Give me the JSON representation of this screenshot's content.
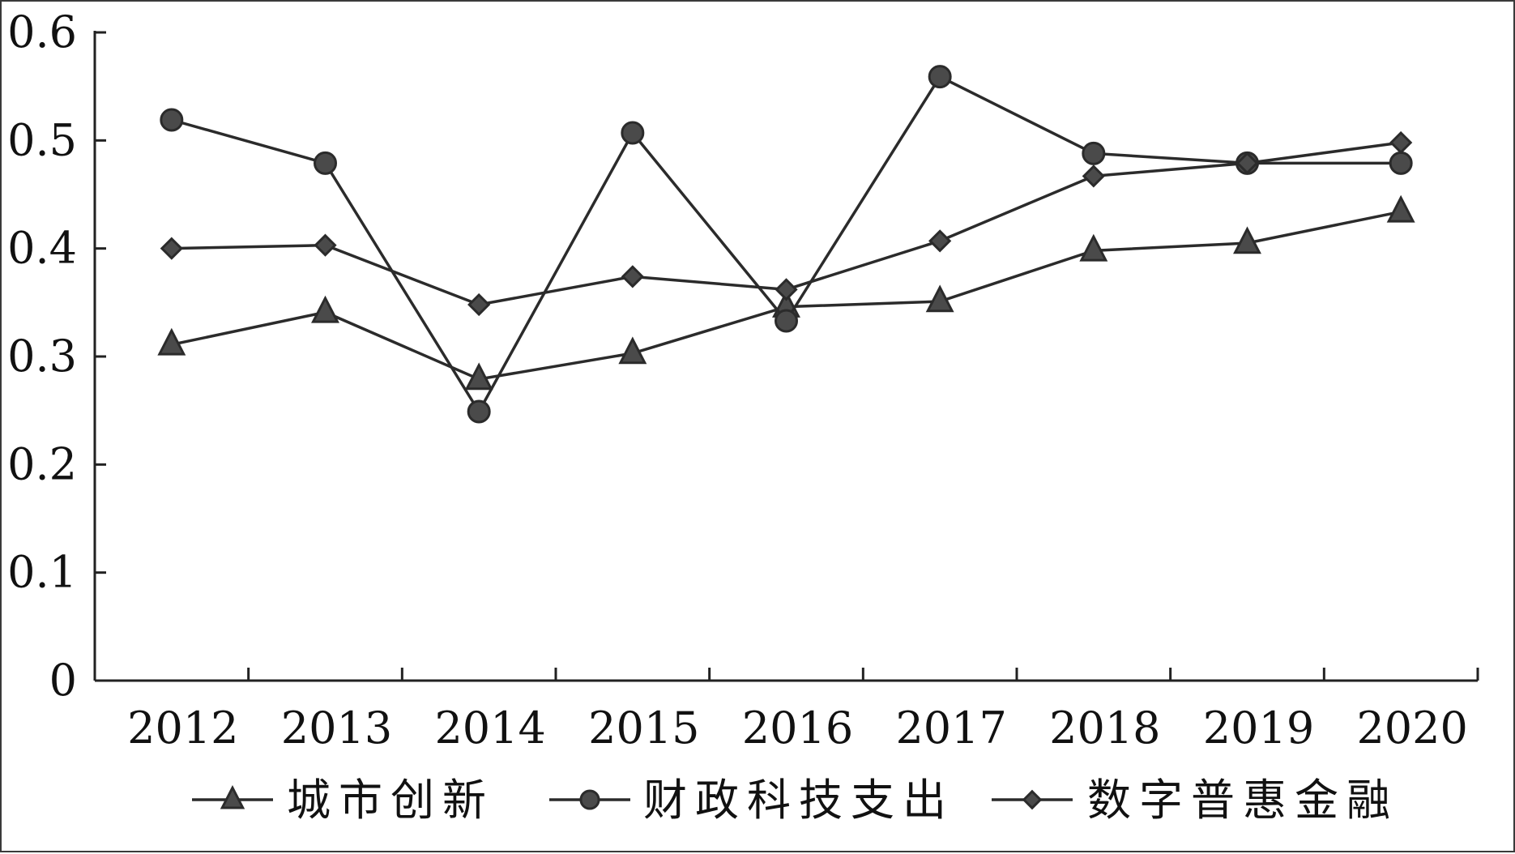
{
  "chart_data": {
    "type": "line",
    "categories": [
      "2012",
      "2013",
      "2014",
      "2015",
      "2016",
      "2017",
      "2018",
      "2019",
      "2020"
    ],
    "ylim": [
      0,
      0.6
    ],
    "yticks": [
      0,
      0.1,
      0.2,
      0.3,
      0.4,
      0.5,
      0.6
    ],
    "ytick_labels": [
      "0",
      "0.1",
      "0.2",
      "0.3",
      "0.4",
      "0.5",
      "0.6"
    ],
    "grid": false,
    "legend_position": "bottom",
    "series": [
      {
        "name": "城市创新",
        "marker": "triangle",
        "values": [
          0.311,
          0.341,
          0.279,
          0.303,
          0.346,
          0.351,
          0.398,
          0.405,
          0.434
        ]
      },
      {
        "name": "财政科技支出",
        "marker": "circle",
        "values": [
          0.519,
          0.479,
          0.249,
          0.507,
          0.333,
          0.559,
          0.488,
          0.479,
          0.479
        ]
      },
      {
        "name": "数字普惠金融",
        "marker": "diamond",
        "values": [
          0.4,
          0.403,
          0.348,
          0.374,
          0.362,
          0.407,
          0.467,
          0.479,
          0.498
        ]
      }
    ]
  },
  "colors": {
    "line": "#2b2b2b",
    "marker_fill": "#4a4a4a",
    "axis": "#222222"
  }
}
